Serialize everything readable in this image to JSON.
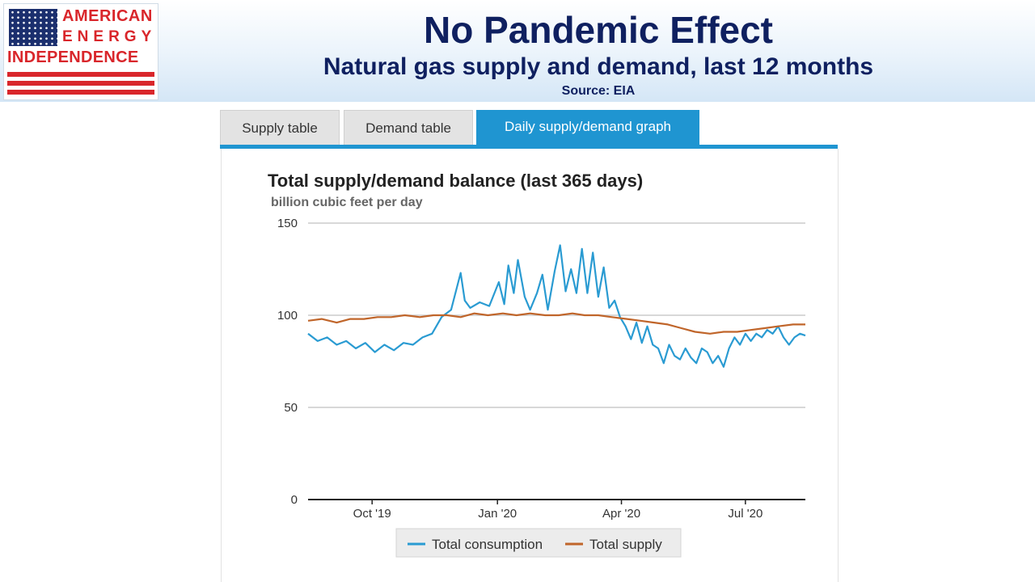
{
  "header": {
    "logo": {
      "line1": "AMERICAN",
      "line2": "ENERGY",
      "line3": "INDEPENDENCE"
    },
    "title": "No Pandemic Effect",
    "subtitle": "Natural gas supply and demand, last 12 months",
    "source": "Source: EIA"
  },
  "tabs": [
    {
      "label": "Supply table",
      "active": false
    },
    {
      "label": "Demand table",
      "active": false
    },
    {
      "label": "Daily supply/demand graph",
      "active": true
    }
  ],
  "colors": {
    "consumption": "#2a9bd2",
    "supply": "#c0652a",
    "tab_active": "#1f95d1",
    "title_navy": "#0f2060",
    "logo_red": "#d9262b"
  },
  "chart_data": {
    "type": "line",
    "title": "Total supply/demand balance (last 365 days)",
    "subtitle": "billion cubic feet per day",
    "ylim": [
      0,
      150
    ],
    "yticks": [
      0,
      50,
      100,
      150
    ],
    "x_tick_labels": [
      "Oct '19",
      "Jan '20",
      "Apr '20",
      "Jul '20"
    ],
    "x_tick_dates": [
      "2019-10-01",
      "2020-01-01",
      "2020-04-01",
      "2020-07-01"
    ],
    "x_range": [
      "2019-08-15",
      "2020-08-14"
    ],
    "grid": true,
    "legend_position": "bottom",
    "series": [
      {
        "name": "Total consumption",
        "color": "#2a9bd2",
        "points": [
          [
            "2019-08-15",
            90
          ],
          [
            "2019-08-22",
            86
          ],
          [
            "2019-08-29",
            88
          ],
          [
            "2019-09-05",
            84
          ],
          [
            "2019-09-12",
            86
          ],
          [
            "2019-09-19",
            82
          ],
          [
            "2019-09-26",
            85
          ],
          [
            "2019-10-03",
            80
          ],
          [
            "2019-10-10",
            84
          ],
          [
            "2019-10-17",
            81
          ],
          [
            "2019-10-24",
            85
          ],
          [
            "2019-10-31",
            84
          ],
          [
            "2019-11-07",
            88
          ],
          [
            "2019-11-14",
            90
          ],
          [
            "2019-11-21",
            99
          ],
          [
            "2019-11-28",
            103
          ],
          [
            "2019-12-05",
            123
          ],
          [
            "2019-12-08",
            108
          ],
          [
            "2019-12-12",
            104
          ],
          [
            "2019-12-19",
            107
          ],
          [
            "2019-12-26",
            105
          ],
          [
            "2020-01-02",
            118
          ],
          [
            "2020-01-06",
            106
          ],
          [
            "2020-01-09",
            127
          ],
          [
            "2020-01-13",
            112
          ],
          [
            "2020-01-16",
            130
          ],
          [
            "2020-01-21",
            110
          ],
          [
            "2020-01-25",
            103
          ],
          [
            "2020-01-30",
            112
          ],
          [
            "2020-02-03",
            122
          ],
          [
            "2020-02-07",
            103
          ],
          [
            "2020-02-12",
            124
          ],
          [
            "2020-02-16",
            138
          ],
          [
            "2020-02-20",
            113
          ],
          [
            "2020-02-24",
            125
          ],
          [
            "2020-02-28",
            112
          ],
          [
            "2020-03-03",
            136
          ],
          [
            "2020-03-07",
            112
          ],
          [
            "2020-03-11",
            134
          ],
          [
            "2020-03-15",
            110
          ],
          [
            "2020-03-19",
            126
          ],
          [
            "2020-03-23",
            104
          ],
          [
            "2020-03-27",
            108
          ],
          [
            "2020-03-31",
            99
          ],
          [
            "2020-04-04",
            94
          ],
          [
            "2020-04-08",
            87
          ],
          [
            "2020-04-12",
            96
          ],
          [
            "2020-04-16",
            85
          ],
          [
            "2020-04-20",
            94
          ],
          [
            "2020-04-24",
            84
          ],
          [
            "2020-04-28",
            82
          ],
          [
            "2020-05-02",
            74
          ],
          [
            "2020-05-06",
            84
          ],
          [
            "2020-05-10",
            78
          ],
          [
            "2020-05-14",
            76
          ],
          [
            "2020-05-18",
            82
          ],
          [
            "2020-05-22",
            77
          ],
          [
            "2020-05-26",
            74
          ],
          [
            "2020-05-30",
            82
          ],
          [
            "2020-06-03",
            80
          ],
          [
            "2020-06-07",
            74
          ],
          [
            "2020-06-11",
            78
          ],
          [
            "2020-06-15",
            72
          ],
          [
            "2020-06-19",
            82
          ],
          [
            "2020-06-23",
            88
          ],
          [
            "2020-06-27",
            84
          ],
          [
            "2020-07-01",
            90
          ],
          [
            "2020-07-05",
            86
          ],
          [
            "2020-07-09",
            90
          ],
          [
            "2020-07-13",
            88
          ],
          [
            "2020-07-17",
            92
          ],
          [
            "2020-07-21",
            90
          ],
          [
            "2020-07-25",
            94
          ],
          [
            "2020-07-29",
            88
          ],
          [
            "2020-08-02",
            84
          ],
          [
            "2020-08-06",
            88
          ],
          [
            "2020-08-10",
            90
          ],
          [
            "2020-08-14",
            89
          ]
        ]
      },
      {
        "name": "Total supply",
        "color": "#c0652a",
        "points": [
          [
            "2019-08-15",
            97
          ],
          [
            "2019-08-25",
            98
          ],
          [
            "2019-09-05",
            96
          ],
          [
            "2019-09-15",
            98
          ],
          [
            "2019-09-25",
            98
          ],
          [
            "2019-10-05",
            99
          ],
          [
            "2019-10-15",
            99
          ],
          [
            "2019-10-25",
            100
          ],
          [
            "2019-11-05",
            99
          ],
          [
            "2019-11-15",
            100
          ],
          [
            "2019-11-25",
            100
          ],
          [
            "2019-12-05",
            99
          ],
          [
            "2019-12-15",
            101
          ],
          [
            "2019-12-25",
            100
          ],
          [
            "2020-01-05",
            101
          ],
          [
            "2020-01-15",
            100
          ],
          [
            "2020-01-25",
            101
          ],
          [
            "2020-02-05",
            100
          ],
          [
            "2020-02-15",
            100
          ],
          [
            "2020-02-25",
            101
          ],
          [
            "2020-03-05",
            100
          ],
          [
            "2020-03-15",
            100
          ],
          [
            "2020-03-25",
            99
          ],
          [
            "2020-04-05",
            98
          ],
          [
            "2020-04-15",
            97
          ],
          [
            "2020-04-25",
            96
          ],
          [
            "2020-05-05",
            95
          ],
          [
            "2020-05-15",
            93
          ],
          [
            "2020-05-25",
            91
          ],
          [
            "2020-06-05",
            90
          ],
          [
            "2020-06-15",
            91
          ],
          [
            "2020-06-25",
            91
          ],
          [
            "2020-07-05",
            92
          ],
          [
            "2020-07-15",
            93
          ],
          [
            "2020-07-25",
            94
          ],
          [
            "2020-08-05",
            95
          ],
          [
            "2020-08-14",
            95
          ]
        ]
      }
    ]
  }
}
